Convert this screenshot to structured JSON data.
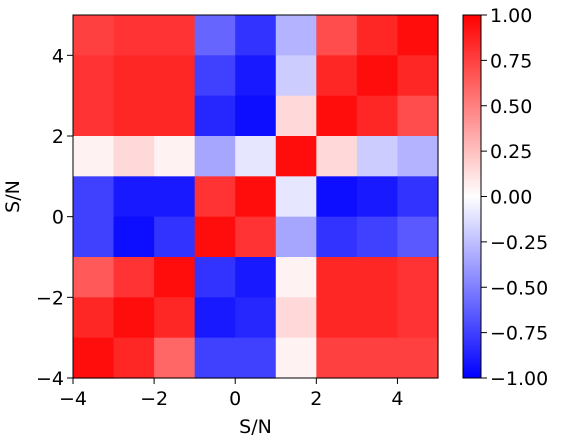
{
  "chart_data": {
    "type": "heatmap",
    "title": "",
    "xlabel": "S/N",
    "ylabel": "S/N",
    "xlim": [
      -4,
      5
    ],
    "ylim": [
      -4,
      5
    ],
    "x_ticks": [
      -4,
      -2,
      0,
      2,
      4
    ],
    "y_ticks": [
      -4,
      -2,
      0,
      2,
      4
    ],
    "x_tick_labels": [
      "−4",
      "−2",
      "0",
      "2",
      "4"
    ],
    "y_tick_labels": [
      "−4",
      "−2",
      "0",
      "2",
      "4"
    ],
    "colormap": "bwr",
    "vmin": -1,
    "vmax": 1,
    "colorbar_ticks": [
      1.0,
      0.75,
      0.5,
      0.25,
      0.0,
      -0.25,
      -0.5,
      -0.75,
      -1.0
    ],
    "colorbar_tick_labels": [
      "1.00",
      "0.75",
      "0.50",
      "0.25",
      "0.00",
      "−0.25",
      "−0.50",
      "−0.75",
      "−1.00"
    ],
    "grid": false,
    "matrix_rows_top_to_bottom": [
      [
        0.75,
        0.8,
        0.8,
        -0.6,
        -0.8,
        -0.3,
        0.7,
        0.85,
        0.95
      ],
      [
        0.8,
        0.85,
        0.85,
        -0.75,
        -0.9,
        -0.2,
        0.85,
        0.95,
        0.85
      ],
      [
        0.8,
        0.85,
        0.85,
        -0.85,
        -0.95,
        0.15,
        0.95,
        0.85,
        0.7
      ],
      [
        0.05,
        0.15,
        0.05,
        -0.35,
        -0.1,
        0.95,
        0.15,
        -0.2,
        -0.3
      ],
      [
        -0.75,
        -0.9,
        -0.9,
        0.8,
        0.95,
        -0.1,
        -0.95,
        -0.9,
        -0.8
      ],
      [
        -0.75,
        -0.95,
        -0.8,
        0.95,
        0.8,
        -0.35,
        -0.8,
        -0.75,
        -0.65
      ],
      [
        0.65,
        0.8,
        0.95,
        -0.8,
        -0.9,
        0.05,
        0.85,
        0.85,
        0.8
      ],
      [
        0.85,
        0.95,
        0.85,
        -0.9,
        -0.85,
        0.15,
        0.85,
        0.85,
        0.8
      ],
      [
        0.95,
        0.85,
        0.6,
        -0.75,
        -0.75,
        0.05,
        0.75,
        0.75,
        0.75
      ]
    ]
  }
}
